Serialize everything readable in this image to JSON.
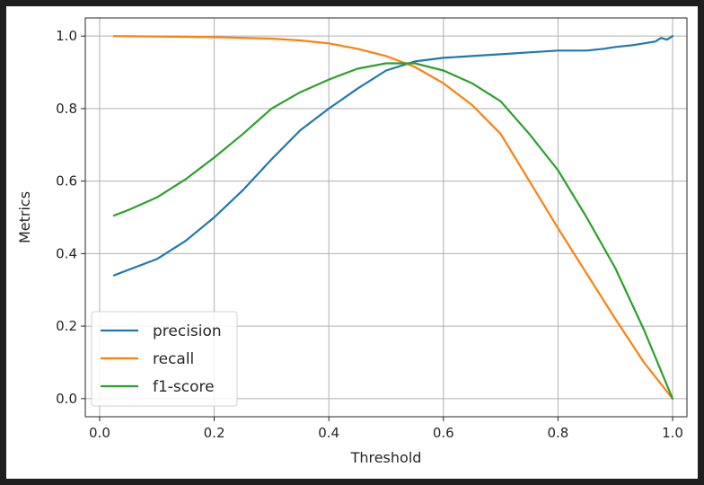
{
  "chart_data": {
    "type": "line",
    "title": "",
    "xlabel": "Threshold",
    "ylabel": "Metrics",
    "xlim": [
      -0.025,
      1.025
    ],
    "ylim": [
      -0.05,
      1.05
    ],
    "xticks": [
      0.0,
      0.2,
      0.4,
      0.6,
      0.8,
      1.0
    ],
    "xtick_labels": [
      "0.0",
      "0.2",
      "0.4",
      "0.6",
      "0.8",
      "1.0"
    ],
    "yticks": [
      0.0,
      0.2,
      0.4,
      0.6,
      0.8,
      1.0
    ],
    "ytick_labels": [
      "0.0",
      "0.2",
      "0.4",
      "0.6",
      "0.8",
      "1.0"
    ],
    "grid": true,
    "legend_position": "lower-left",
    "series": [
      {
        "name": "precision",
        "color": "#1f77b4",
        "x": [
          0.025,
          0.05,
          0.1,
          0.15,
          0.2,
          0.25,
          0.3,
          0.35,
          0.4,
          0.45,
          0.5,
          0.55,
          0.6,
          0.65,
          0.7,
          0.75,
          0.8,
          0.85,
          0.88,
          0.9,
          0.93,
          0.95,
          0.97,
          0.98,
          0.99,
          1.0
        ],
        "y": [
          0.34,
          0.355,
          0.385,
          0.435,
          0.5,
          0.575,
          0.66,
          0.74,
          0.8,
          0.855,
          0.905,
          0.93,
          0.94,
          0.945,
          0.95,
          0.955,
          0.96,
          0.96,
          0.965,
          0.97,
          0.975,
          0.98,
          0.985,
          0.995,
          0.99,
          1.0
        ]
      },
      {
        "name": "recall",
        "color": "#ff7f0e",
        "x": [
          0.025,
          0.1,
          0.2,
          0.3,
          0.35,
          0.4,
          0.45,
          0.5,
          0.55,
          0.6,
          0.65,
          0.7,
          0.75,
          0.8,
          0.85,
          0.9,
          0.95,
          1.0
        ],
        "y": [
          1.0,
          0.999,
          0.997,
          0.993,
          0.988,
          0.98,
          0.965,
          0.945,
          0.915,
          0.87,
          0.81,
          0.73,
          0.6,
          0.47,
          0.345,
          0.22,
          0.1,
          0.0
        ]
      },
      {
        "name": "f1-score",
        "color": "#2ca02c",
        "x": [
          0.025,
          0.05,
          0.1,
          0.15,
          0.2,
          0.25,
          0.3,
          0.35,
          0.4,
          0.45,
          0.5,
          0.55,
          0.6,
          0.65,
          0.7,
          0.75,
          0.8,
          0.85,
          0.9,
          0.95,
          1.0
        ],
        "y": [
          0.505,
          0.52,
          0.555,
          0.605,
          0.665,
          0.73,
          0.8,
          0.845,
          0.88,
          0.91,
          0.925,
          0.925,
          0.905,
          0.87,
          0.82,
          0.73,
          0.63,
          0.5,
          0.36,
          0.19,
          0.0
        ]
      }
    ]
  }
}
